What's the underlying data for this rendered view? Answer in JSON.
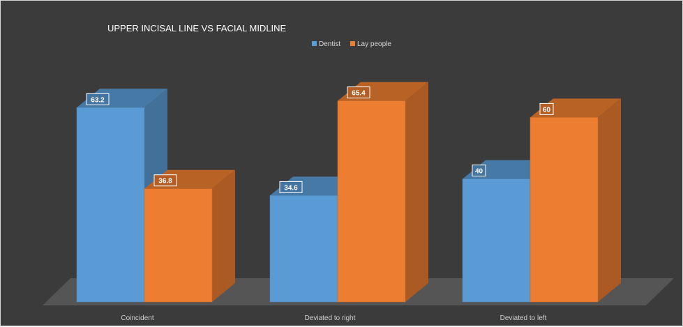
{
  "chart_data": {
    "type": "bar",
    "title": "UPPER INCISAL LINE VS FACIAL MIDLINE",
    "categories": [
      "Coincident",
      "Deviated to right",
      "Deviated to left"
    ],
    "series": [
      {
        "name": "Dentist",
        "values": [
          63.2,
          34.6,
          40
        ],
        "color": "#5b9bd5"
      },
      {
        "name": "Lay people",
        "values": [
          36.8,
          65.4,
          60
        ],
        "color": "#ed7d31"
      }
    ],
    "ylim": [
      0,
      70
    ],
    "grid": false,
    "legend": "top-center",
    "style": "3d-clustered-column",
    "background": "#3b3b3b"
  }
}
